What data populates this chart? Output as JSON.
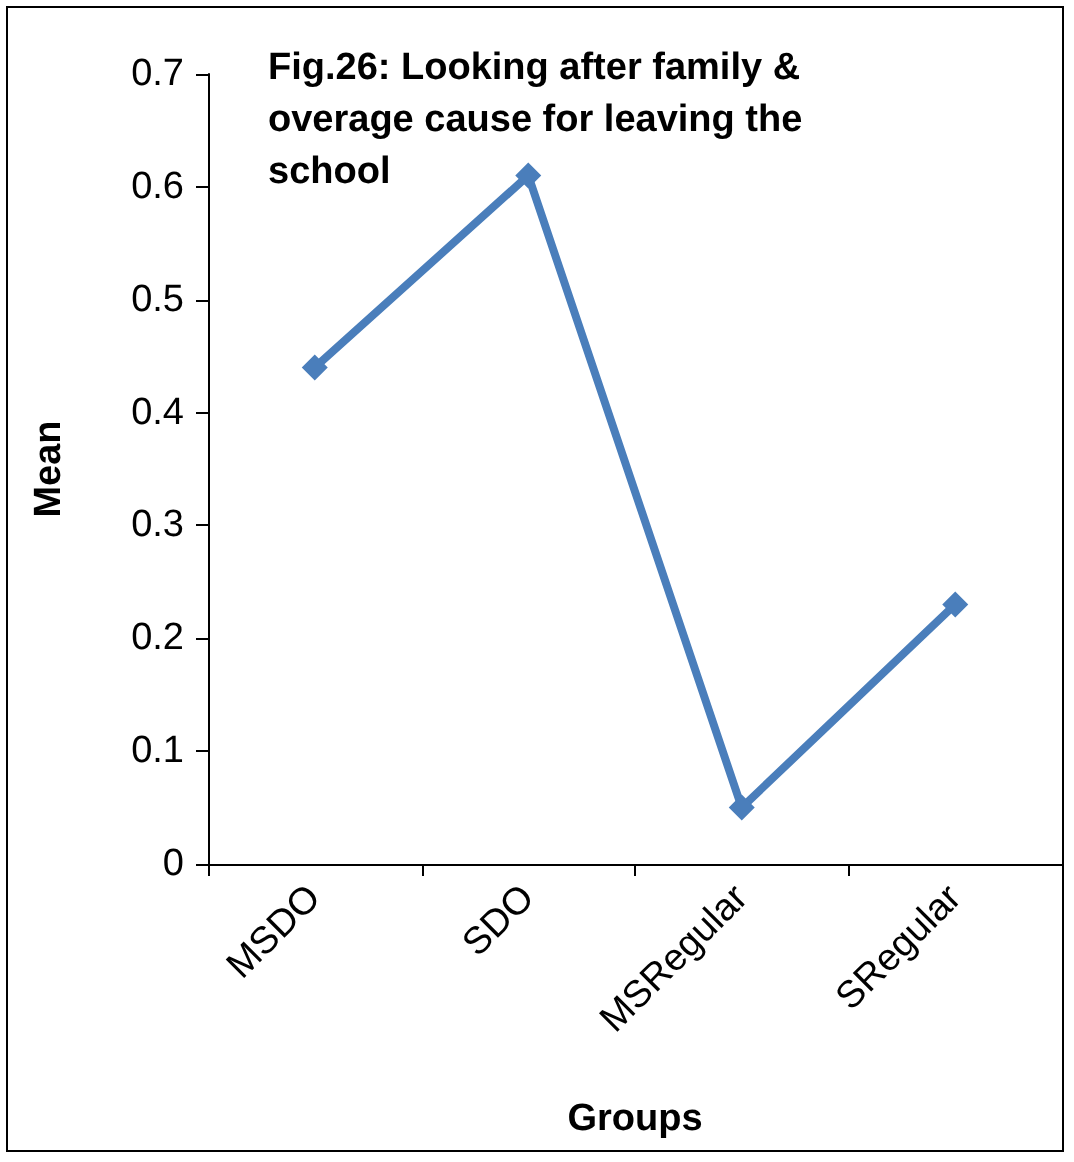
{
  "chart_data": {
    "type": "line",
    "title": "Fig.26: Looking after family & overage cause for leaving the school",
    "xlabel": "Groups",
    "ylabel": "Mean",
    "categories": [
      "MSDO",
      "SDO",
      "MSRegular",
      "SRegular"
    ],
    "series": [
      {
        "color": "#4a7ebb",
        "values": [
          0.44,
          0.61,
          0.05,
          0.23
        ]
      }
    ],
    "ylim": [
      0,
      0.7
    ],
    "yticks": [
      0,
      0.1,
      0.2,
      0.3,
      0.4,
      0.5,
      0.6,
      0.7
    ],
    "grid": false,
    "marker": "diamond",
    "line_style": "solid"
  }
}
